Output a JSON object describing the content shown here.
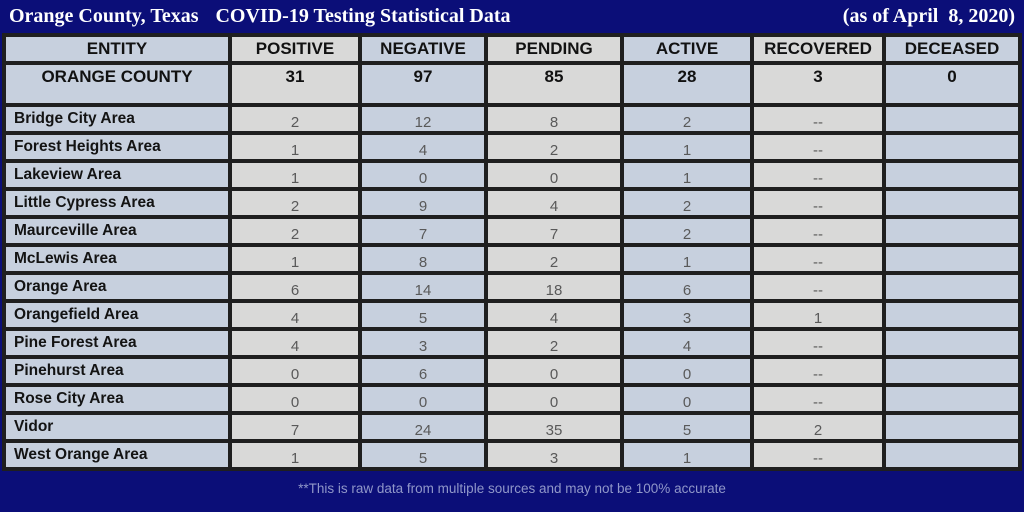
{
  "title": {
    "location": "Orange County, Texas",
    "subject": "COVID-19 Testing Statistical Data",
    "as_of": "(as of April  8, 2020)"
  },
  "colors": {
    "background": "#0b0e78",
    "grid": "#1f1f1f",
    "cell_blue_gray": "#c7d0de",
    "cell_gray": "#d9d9d8",
    "bold_text": "#111111",
    "number_text": "#595959",
    "title_text": "#ffffff",
    "footnote_text": "#9097c9"
  },
  "table": {
    "columns": [
      "ENTITY",
      "POSITIVE",
      "NEGATIVE",
      "PENDING",
      "ACTIVE",
      "RECOVERED",
      "DECEASED"
    ],
    "summary_row": {
      "name": "ORANGE COUNTY",
      "values": [
        "31",
        "97",
        "85",
        "28",
        "3",
        "0"
      ]
    },
    "rows": [
      {
        "name": "Bridge City Area",
        "values": [
          "2",
          "12",
          "8",
          "2",
          "--",
          ""
        ]
      },
      {
        "name": "Forest Heights Area",
        "values": [
          "1",
          "4",
          "2",
          "1",
          "--",
          ""
        ]
      },
      {
        "name": "Lakeview Area",
        "values": [
          "1",
          "0",
          "0",
          "1",
          "--",
          ""
        ]
      },
      {
        "name": "Little Cypress Area",
        "values": [
          "2",
          "9",
          "4",
          "2",
          "--",
          ""
        ]
      },
      {
        "name": "Maurceville Area",
        "values": [
          "2",
          "7",
          "7",
          "2",
          "--",
          ""
        ]
      },
      {
        "name": "McLewis Area",
        "values": [
          "1",
          "8",
          "2",
          "1",
          "--",
          ""
        ]
      },
      {
        "name": "Orange Area",
        "values": [
          "6",
          "14",
          "18",
          "6",
          "--",
          ""
        ]
      },
      {
        "name": "Orangefield Area",
        "values": [
          "4",
          "5",
          "4",
          "3",
          "1",
          ""
        ]
      },
      {
        "name": "Pine Forest Area",
        "values": [
          "4",
          "3",
          "2",
          "4",
          "--",
          ""
        ]
      },
      {
        "name": "Pinehurst Area",
        "values": [
          "0",
          "6",
          "0",
          "0",
          "--",
          ""
        ]
      },
      {
        "name": "Rose City Area",
        "values": [
          "0",
          "0",
          "0",
          "0",
          "--",
          ""
        ]
      },
      {
        "name": "Vidor",
        "values": [
          "7",
          "24",
          "35",
          "5",
          "2",
          ""
        ]
      },
      {
        "name": "West Orange Area",
        "values": [
          "1",
          "5",
          "3",
          "1",
          "--",
          ""
        ]
      }
    ]
  },
  "footnote": "**This is raw data from multiple sources and may not be 100% accurate",
  "chart_data": {
    "type": "table",
    "title": "Orange County, Texas COVID-19 Testing Statistical Data (as of April 8, 2020)",
    "columns": [
      "ENTITY",
      "POSITIVE",
      "NEGATIVE",
      "PENDING",
      "ACTIVE",
      "RECOVERED",
      "DECEASED"
    ],
    "rows": [
      [
        "ORANGE COUNTY",
        31,
        97,
        85,
        28,
        3,
        0
      ],
      [
        "Bridge City Area",
        2,
        12,
        8,
        2,
        "--",
        ""
      ],
      [
        "Forest Heights Area",
        1,
        4,
        2,
        1,
        "--",
        ""
      ],
      [
        "Lakeview Area",
        1,
        0,
        0,
        1,
        "--",
        ""
      ],
      [
        "Little Cypress Area",
        2,
        9,
        4,
        2,
        "--",
        ""
      ],
      [
        "Maurceville Area",
        2,
        7,
        7,
        2,
        "--",
        ""
      ],
      [
        "McLewis Area",
        1,
        8,
        2,
        1,
        "--",
        ""
      ],
      [
        "Orange Area",
        6,
        14,
        18,
        6,
        "--",
        ""
      ],
      [
        "Orangefield Area",
        4,
        5,
        4,
        3,
        1,
        ""
      ],
      [
        "Pine Forest Area",
        4,
        3,
        2,
        4,
        "--",
        ""
      ],
      [
        "Pinehurst Area",
        0,
        6,
        0,
        0,
        "--",
        ""
      ],
      [
        "Rose City Area",
        0,
        0,
        0,
        0,
        "--",
        ""
      ],
      [
        "Vidor",
        7,
        24,
        35,
        5,
        2,
        ""
      ],
      [
        "West Orange Area",
        1,
        5,
        3,
        1,
        "--",
        ""
      ]
    ]
  }
}
